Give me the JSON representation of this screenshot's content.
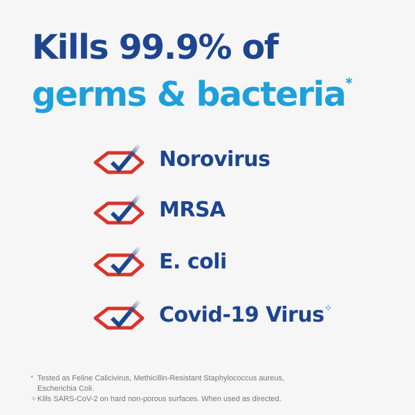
{
  "headline": {
    "line1": "Kills 99.9% of",
    "line2": "germs & bacteria",
    "asterisk": "*"
  },
  "items": [
    {
      "label": "Norovirus",
      "mark": ""
    },
    {
      "label": "MRSA",
      "mark": ""
    },
    {
      "label": "E. coli",
      "mark": ""
    },
    {
      "label": "Covid-19 Virus",
      "mark": "✧"
    }
  ],
  "icon": "check-in-diamond-icon",
  "colors": {
    "dark_blue": "#1d4590",
    "light_blue": "#1ea0dc",
    "red": "#d9342b"
  },
  "footnotes": [
    {
      "marker": "*",
      "text": "Tested as Feline Calicivirus, Methicillin-Resistant Staphylococcus aureus, Escherichia Coli."
    },
    {
      "marker": "✧",
      "text": "Kills SARS-CoV-2 on hard non-porous surfaces. When used as directed."
    }
  ]
}
